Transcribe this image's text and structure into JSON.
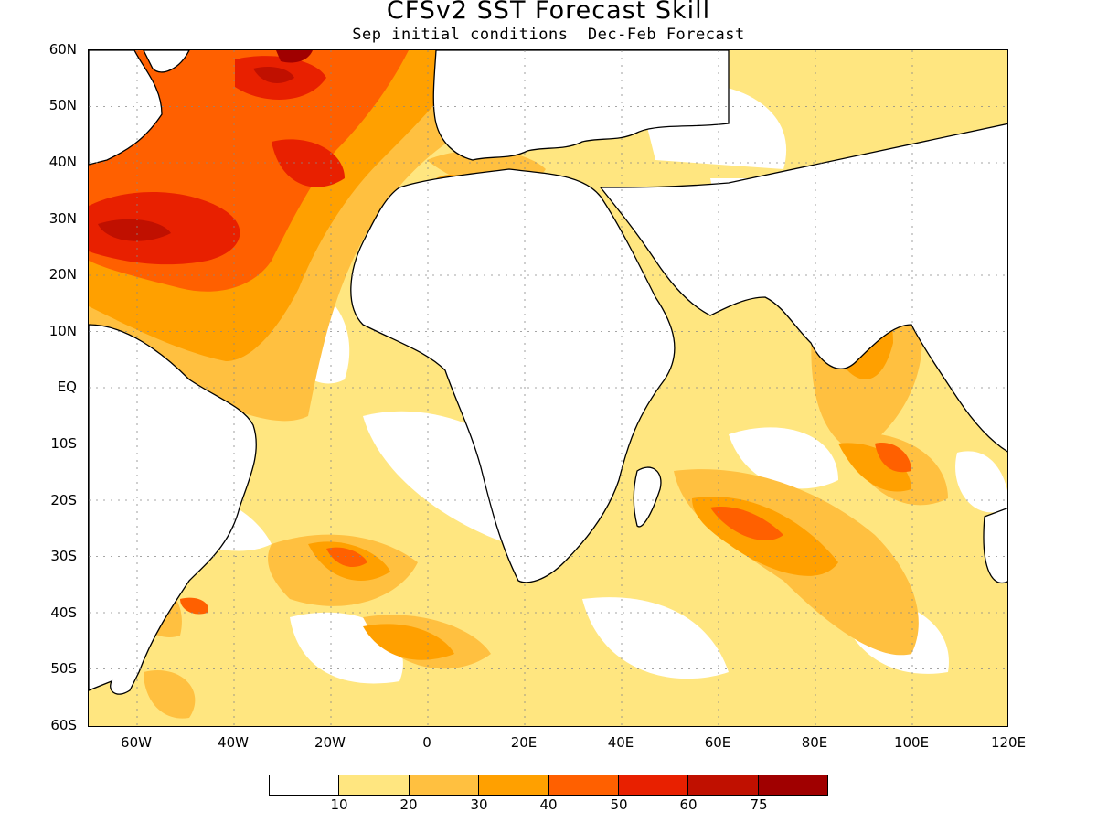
{
  "header": {
    "title": "CFSv2 SST Forecast Skill",
    "subtitle": "Sep initial conditions  Dec-Feb Forecast"
  },
  "map": {
    "lat_ticks": [
      "60N",
      "50N",
      "40N",
      "30N",
      "20N",
      "10N",
      "EQ",
      "10S",
      "20S",
      "30S",
      "40S",
      "50S",
      "60S"
    ],
    "lon_ticks": [
      "60W",
      "40W",
      "20W",
      "0",
      "20E",
      "40E",
      "60E",
      "80E",
      "100E",
      "120E"
    ],
    "lon_range": [
      -70,
      120
    ],
    "lat_range": [
      -60,
      60
    ]
  },
  "legend": {
    "colors": [
      "#ffffff",
      "#ffe680",
      "#ffc040",
      "#ffa000",
      "#ff6000",
      "#e82000",
      "#c01000",
      "#a00000"
    ],
    "labels": [
      "10",
      "20",
      "30",
      "40",
      "50",
      "60",
      "75"
    ]
  }
}
